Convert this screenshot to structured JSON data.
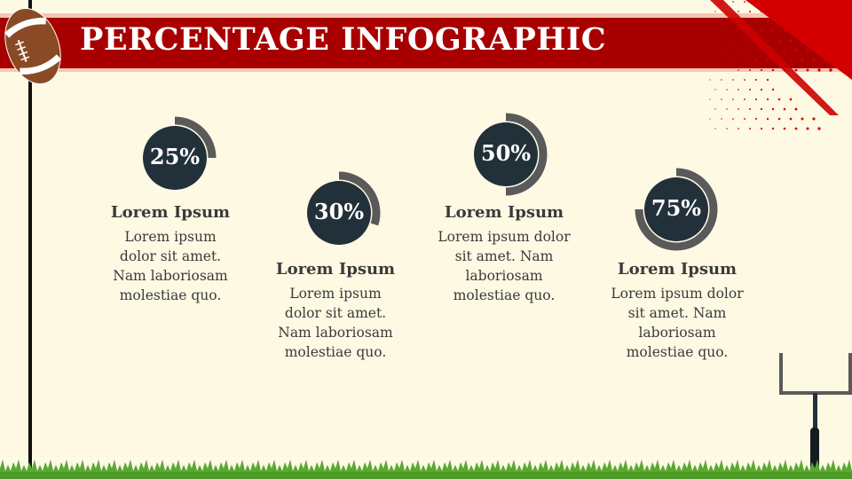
{
  "title": "PERCENTAGE INFOGRAPHIC",
  "colors": {
    "banner": "#a80000",
    "banner_edge": "#f5c7b3",
    "accent": "#d40000",
    "circle": "#22303a",
    "ring": "#5a5a5a",
    "text": "#3a3a3a",
    "grass": "#5aa830",
    "background": "#fdf9e3"
  },
  "icons": [
    "football-icon",
    "goal-post-icon",
    "grass-decoration"
  ],
  "items": [
    {
      "percent": 25,
      "label": "25%",
      "heading": "Lorem Ipsum",
      "body": [
        "Lorem ipsum",
        "dolor sit amet.",
        "Nam laboriosam",
        "molestiae quo."
      ]
    },
    {
      "percent": 30,
      "label": "30%",
      "heading": "Lorem Ipsum",
      "body": [
        "Lorem ipsum",
        "dolor sit amet.",
        "Nam laboriosam",
        "molestiae quo."
      ]
    },
    {
      "percent": 50,
      "label": "50%",
      "heading": "Lorem Ipsum",
      "body": [
        "Lorem ipsum dolor",
        "sit amet. Nam",
        "laboriosam",
        "molestiae quo."
      ]
    },
    {
      "percent": 75,
      "label": "75%",
      "heading": "Lorem Ipsum",
      "body": [
        "Lorem ipsum dolor",
        "sit amet. Nam",
        "laboriosam",
        "molestiae quo."
      ]
    }
  ]
}
